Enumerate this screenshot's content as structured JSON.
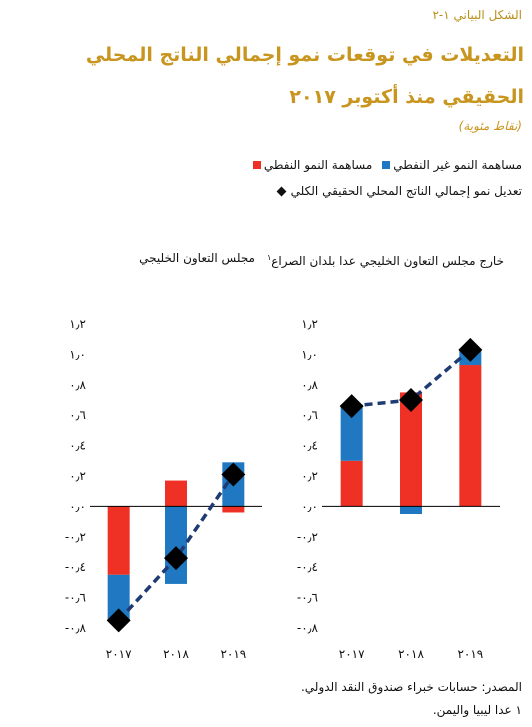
{
  "header": {
    "figure_label": "الشكل البياني ١-٢",
    "title": "التعديلات في توقعات نمو إجمالي الناتج المحلي الحقيقي منذ أكتوبر ٢٠١٧",
    "subtitle": "(نقاط مئوية)"
  },
  "legend": {
    "oil_label": "مساهمة النمو النفطي",
    "nonoil_label": "مساهمة النمو غير النفطي",
    "total_label": "تعديل نمو إجمالي الناتج المحلي الحقيقي الكلي"
  },
  "colors": {
    "oil": "#ee3124",
    "nonoil": "#1f78c1",
    "total": "#000000",
    "line": "#1f3b73"
  },
  "chart_data": [
    {
      "type": "bar",
      "title": "خارج مجلس التعاون الخليجي عدا بلدان الصراع",
      "title_note": "١",
      "categories": [
        "٢٠١٧",
        "٢٠١٨",
        "٢٠١٩"
      ],
      "series": [
        {
          "name": "مساهمة النمو النفطي",
          "values": [
            0.3,
            0.75,
            0.93
          ]
        },
        {
          "name": "مساهمة النمو غير النفطي",
          "values": [
            0.37,
            -0.05,
            0.1
          ]
        }
      ],
      "total": [
        0.66,
        0.7,
        1.03
      ],
      "ylim": [
        -0.8,
        1.2
      ],
      "yticks": [
        "١٫٢",
        "١٫٠",
        "٠٫٨",
        "٠٫٦",
        "٠٫٤",
        "٠٫٢",
        "٠٫٠",
        "-٠٫٢",
        "-٠٫٤",
        "-٠٫٦",
        "-٠٫٨"
      ]
    },
    {
      "type": "bar",
      "title": "مجلس التعاون الخليجي",
      "categories": [
        "٢٠١٧",
        "٢٠١٨",
        "٢٠١٩"
      ],
      "series": [
        {
          "name": "مساهمة النمو النفطي",
          "values": [
            -0.45,
            0.17,
            -0.04
          ]
        },
        {
          "name": "مساهمة النمو غير النفطي",
          "values": [
            -0.3,
            -0.51,
            0.29
          ]
        }
      ],
      "total": [
        -0.75,
        -0.34,
        0.21
      ],
      "ylim": [
        -0.8,
        1.2
      ],
      "yticks": [
        "١٫٢",
        "١٫٠",
        "٠٫٨",
        "٠٫٦",
        "٠٫٤",
        "٠٫٢",
        "٠٫٠",
        "-٠٫٢",
        "-٠٫٤",
        "-٠٫٦",
        "-٠٫٨"
      ]
    }
  ],
  "footer": {
    "source": "المصدر: حسابات خبراء صندوق النقد الدولي.",
    "footnote": "١ عدا ليبيا واليمن."
  }
}
